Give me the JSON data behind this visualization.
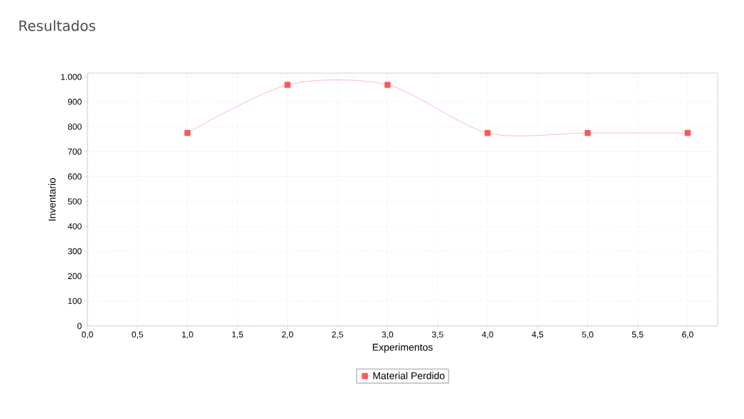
{
  "chart_data": {
    "type": "line",
    "title": "Resultados",
    "xlabel": "Experimentos",
    "ylabel": "Inventario",
    "x": [
      1,
      2,
      3,
      4,
      5,
      6
    ],
    "series": [
      {
        "name": "Material Perdido",
        "color": "#ff5555",
        "values": [
          775,
          968,
          968,
          775,
          775,
          775
        ]
      }
    ],
    "xlim": [
      0,
      6.3
    ],
    "ylim": [
      0,
      1015
    ],
    "xticks": [
      {
        "value": 0,
        "label": "0,0"
      },
      {
        "value": 0.5,
        "label": "0,5"
      },
      {
        "value": 1,
        "label": "1,0"
      },
      {
        "value": 1.5,
        "label": "1,5"
      },
      {
        "value": 2,
        "label": "2,0"
      },
      {
        "value": 2.5,
        "label": "2,5"
      },
      {
        "value": 3,
        "label": "3,0"
      },
      {
        "value": 3.5,
        "label": "3,5"
      },
      {
        "value": 4,
        "label": "4,0"
      },
      {
        "value": 4.5,
        "label": "4,5"
      },
      {
        "value": 5,
        "label": "5,0"
      },
      {
        "value": 5.5,
        "label": "5,5"
      },
      {
        "value": 6,
        "label": "6,0"
      }
    ],
    "yticks": [
      0,
      100,
      200,
      300,
      400,
      500,
      600,
      700,
      800,
      900,
      {
        "value": 1000,
        "label": "1.000"
      }
    ],
    "grid": true,
    "legend": "bottom",
    "marker": "square",
    "line_style": "solid"
  }
}
